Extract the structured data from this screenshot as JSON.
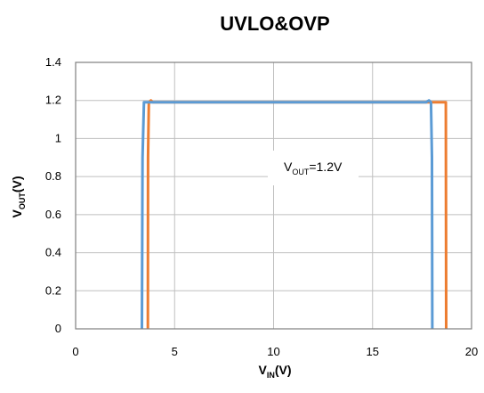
{
  "chart_data": {
    "type": "line",
    "title": "UVLO&OVP",
    "xlabel": {
      "main": "V",
      "sub": "IN",
      "tail": "(V)"
    },
    "ylabel": {
      "main": "V",
      "sub": "OUT",
      "tail": "(V)"
    },
    "xlim": [
      0,
      20
    ],
    "ylim": [
      0,
      1.4
    ],
    "x_ticks": [
      "0",
      "5",
      "10",
      "15",
      "20"
    ],
    "y_ticks": [
      "0",
      "0.2",
      "0.4",
      "0.6",
      "0.8",
      "1",
      "1.2",
      "1.4"
    ],
    "grid": true,
    "annotation": {
      "main": "V",
      "sub": "OUT",
      "tail": "=1.2V"
    },
    "colors": {
      "series1": "#5b9bd5",
      "series2": "#ed7d31",
      "grid": "#bfbfbf",
      "frame": "#7f7f7f"
    },
    "series": [
      {
        "color": "#5b9bd5",
        "x": [
          3.35,
          3.38,
          3.45,
          3.6,
          10,
          17.7,
          17.85,
          17.95,
          18.0,
          18.02
        ],
        "y": [
          0,
          0.9,
          1.19,
          1.19,
          1.19,
          1.19,
          1.2,
          1.19,
          0.9,
          0
        ]
      },
      {
        "color": "#ed7d31",
        "x": [
          3.65,
          3.66,
          3.7,
          3.8,
          3.9,
          10,
          18.6,
          18.7,
          18.72
        ],
        "y": [
          0,
          0.9,
          1.19,
          1.2,
          1.19,
          1.19,
          1.19,
          1.19,
          0
        ]
      }
    ]
  }
}
